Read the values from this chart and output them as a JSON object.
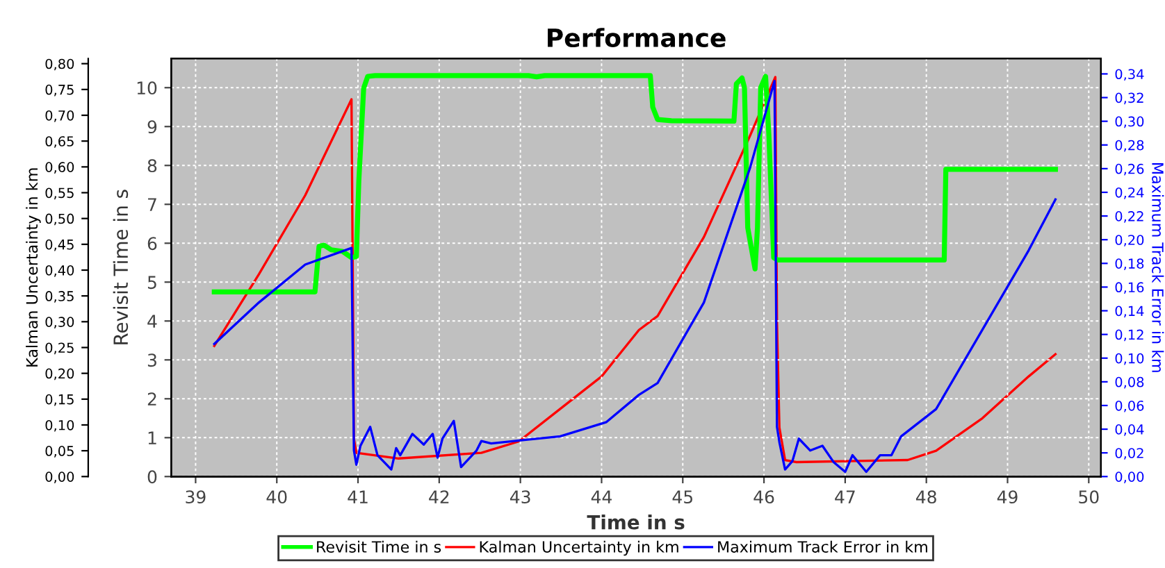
{
  "chart_data": {
    "type": "line",
    "title": "Performance",
    "xlabel": "Time in s",
    "ylabel": "Revisit Time in s",
    "y2label": "Kalman Uncertainty in km",
    "y3label": "Maximum Track Error in km",
    "xlim": [
      38.7,
      50.15
    ],
    "xticks": [
      39,
      40,
      41,
      42,
      43,
      44,
      45,
      46,
      47,
      48,
      49,
      50
    ],
    "ylim": [
      0,
      10.75
    ],
    "yticks": [
      0,
      1,
      2,
      3,
      4,
      5,
      6,
      7,
      8,
      9,
      10
    ],
    "y2lim": [
      0,
      0.81
    ],
    "y2ticks": [
      {
        "value": 0,
        "label": "0,00"
      },
      {
        "value": 0.05,
        "label": "0,05"
      },
      {
        "value": 0.1,
        "label": "0,10"
      },
      {
        "value": 0.15,
        "label": "0,15"
      },
      {
        "value": 0.2,
        "label": "0,20"
      },
      {
        "value": 0.25,
        "label": "0,25"
      },
      {
        "value": 0.3,
        "label": "0,30"
      },
      {
        "value": 0.35,
        "label": "0,35"
      },
      {
        "value": 0.4,
        "label": "0,40"
      },
      {
        "value": 0.45,
        "label": "0,45"
      },
      {
        "value": 0.5,
        "label": "0,50"
      },
      {
        "value": 0.55,
        "label": "0,55"
      },
      {
        "value": 0.6,
        "label": "0,60"
      },
      {
        "value": 0.65,
        "label": "0,65"
      },
      {
        "value": 0.7,
        "label": "0,70"
      },
      {
        "value": 0.75,
        "label": "0,75"
      },
      {
        "value": 0.8,
        "label": "0,80"
      }
    ],
    "y3lim": [
      0,
      0.353
    ],
    "y3ticks": [
      {
        "value": 0,
        "label": "0,00"
      },
      {
        "value": 0.02,
        "label": "0,02"
      },
      {
        "value": 0.04,
        "label": "0,04"
      },
      {
        "value": 0.06,
        "label": "0,06"
      },
      {
        "value": 0.08,
        "label": "0,08"
      },
      {
        "value": 0.1,
        "label": "0,10"
      },
      {
        "value": 0.12,
        "label": "0,12"
      },
      {
        "value": 0.14,
        "label": "0,14"
      },
      {
        "value": 0.16,
        "label": "0,16"
      },
      {
        "value": 0.18,
        "label": "0,18"
      },
      {
        "value": 0.2,
        "label": "0,20"
      },
      {
        "value": 0.22,
        "label": "0,22"
      },
      {
        "value": 0.24,
        "label": "0,24"
      },
      {
        "value": 0.26,
        "label": "0,26"
      },
      {
        "value": 0.28,
        "label": "0,28"
      },
      {
        "value": 0.3,
        "label": "0,30"
      },
      {
        "value": 0.32,
        "label": "0,32"
      },
      {
        "value": 0.34,
        "label": "0,34"
      }
    ],
    "grid": true,
    "legend": "bottom",
    "marker": "none",
    "line_style": "solid",
    "series": [
      {
        "name": "Revisit Time in s",
        "color": "#00ff00",
        "axis": "y",
        "x": [
          39.23,
          40.47,
          40.52,
          40.58,
          40.67,
          40.81,
          40.92,
          40.98,
          41.01,
          41.07,
          41.12,
          41.21,
          43.1,
          43.2,
          43.3,
          44.6,
          44.63,
          44.69,
          44.86,
          45.63,
          45.66,
          45.73,
          45.76,
          45.8,
          45.89,
          45.92,
          45.96,
          46.02,
          46.06,
          46.12,
          46.17,
          48.22,
          48.24,
          49.59
        ],
        "values": [
          4.75,
          4.75,
          5.92,
          5.95,
          5.83,
          5.79,
          5.63,
          5.66,
          7.6,
          9.99,
          10.29,
          10.31,
          10.31,
          10.28,
          10.31,
          10.31,
          9.5,
          9.18,
          9.15,
          9.14,
          10.1,
          10.25,
          10.0,
          6.4,
          5.34,
          6.4,
          10.0,
          10.29,
          8.8,
          5.63,
          5.57,
          5.57,
          7.9,
          7.9
        ]
      },
      {
        "name": "Kalman Uncertainty in km",
        "color": "#ff0000",
        "axis": "y2",
        "x": [
          39.23,
          39.78,
          40.35,
          40.92,
          40.95,
          40.98,
          41.5,
          42.52,
          42.98,
          43.49,
          44.0,
          44.46,
          44.69,
          45.26,
          45.83,
          46.14,
          46.16,
          46.19,
          46.26,
          46.4,
          47.77,
          48.12,
          48.69,
          49.26,
          49.59
        ],
        "values": [
          0.253,
          0.392,
          0.545,
          0.731,
          0.073,
          0.046,
          0.035,
          0.046,
          0.068,
          0.131,
          0.194,
          0.284,
          0.311,
          0.464,
          0.661,
          0.774,
          0.3,
          0.095,
          0.032,
          0.028,
          0.032,
          0.05,
          0.113,
          0.194,
          0.237
        ]
      },
      {
        "name": "Maximum Track Error in km",
        "color": "#0000ff",
        "axis": "y3",
        "x": [
          39.23,
          39.78,
          40.35,
          40.92,
          40.95,
          40.98,
          41.03,
          41.15,
          41.24,
          41.41,
          41.47,
          41.52,
          41.67,
          41.81,
          41.92,
          41.98,
          42.04,
          42.18,
          42.27,
          42.46,
          42.52,
          42.64,
          43.49,
          44.06,
          44.46,
          44.69,
          45.26,
          45.83,
          46.13,
          46.16,
          46.19,
          46.26,
          46.35,
          46.43,
          46.57,
          46.72,
          46.86,
          47.0,
          47.09,
          47.26,
          47.43,
          47.57,
          47.69,
          48.12,
          48.69,
          49.26,
          49.59
        ],
        "values": [
          0.112,
          0.147,
          0.179,
          0.193,
          0.022,
          0.01,
          0.026,
          0.042,
          0.018,
          0.006,
          0.024,
          0.018,
          0.036,
          0.027,
          0.036,
          0.016,
          0.032,
          0.047,
          0.008,
          0.022,
          0.03,
          0.028,
          0.034,
          0.046,
          0.069,
          0.079,
          0.147,
          0.261,
          0.334,
          0.042,
          0.029,
          0.006,
          0.013,
          0.032,
          0.022,
          0.026,
          0.012,
          0.004,
          0.018,
          0.004,
          0.018,
          0.018,
          0.034,
          0.057,
          0.124,
          0.191,
          0.234
        ]
      }
    ]
  }
}
